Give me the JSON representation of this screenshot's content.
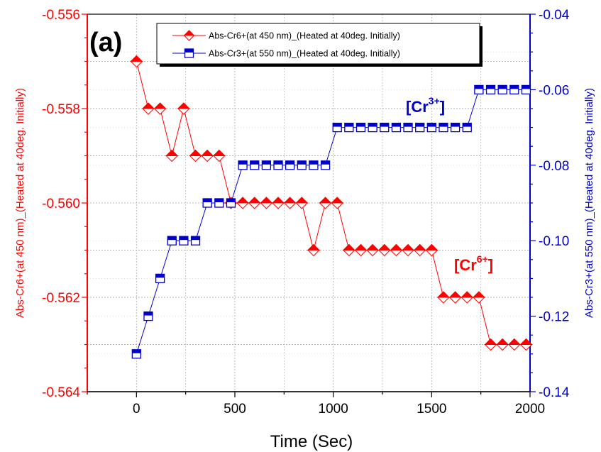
{
  "chart_data": {
    "type": "line",
    "panel_label": "(a)",
    "xlabel": "Time (Sec)",
    "ylabel_left": "Abs-Cr6+(at 450 nm)_(Heated at 40deg. Initially)",
    "ylabel_right": "Abs-Cr3+(at 550 nm)_(Heated at 40deg. Initially)",
    "xlim": [
      -250,
      2000
    ],
    "ylim_left": [
      -0.564,
      -0.556
    ],
    "ylim_right": [
      -0.14,
      -0.04
    ],
    "x_ticks": [
      "0",
      "500",
      "1000",
      "1500",
      "2000"
    ],
    "y_ticks_left": [
      "-0.564",
      "-0.562",
      "-0.560",
      "-0.558",
      "-0.556"
    ],
    "y_ticks_right": [
      "-0.14",
      "-0.12",
      "-0.10",
      "-0.08",
      "-0.06",
      "-0.04"
    ],
    "colors": {
      "cr6": "#ff0000",
      "cr3": "#0000cc",
      "axis": "#000000"
    },
    "series": [
      {
        "name": "Abs-Cr6+(at 450 nm)_(Heated at 40deg. Initially)",
        "axis": "left",
        "marker": "diamond",
        "x": [
          0,
          60,
          120,
          180,
          240,
          300,
          360,
          420,
          480,
          540,
          600,
          660,
          720,
          780,
          840,
          900,
          960,
          1020,
          1080,
          1140,
          1200,
          1260,
          1320,
          1380,
          1440,
          1500,
          1560,
          1620,
          1680,
          1740,
          1800,
          1860,
          1920,
          1980
        ],
        "values": [
          -0.557,
          -0.558,
          -0.558,
          -0.559,
          -0.558,
          -0.559,
          -0.559,
          -0.559,
          -0.56,
          -0.56,
          -0.56,
          -0.56,
          -0.56,
          -0.56,
          -0.56,
          -0.561,
          -0.56,
          -0.56,
          -0.561,
          -0.561,
          -0.561,
          -0.561,
          -0.561,
          -0.561,
          -0.561,
          -0.561,
          -0.562,
          -0.562,
          -0.562,
          -0.562,
          -0.563,
          -0.563,
          -0.563,
          -0.563
        ]
      },
      {
        "name": "Abs-Cr3+(at 550 nm)_(Heated at 40deg. Initially)",
        "axis": "right",
        "marker": "square",
        "x": [
          0,
          60,
          120,
          180,
          240,
          300,
          360,
          420,
          480,
          540,
          600,
          660,
          720,
          780,
          840,
          900,
          960,
          1020,
          1080,
          1140,
          1200,
          1260,
          1320,
          1380,
          1440,
          1500,
          1560,
          1620,
          1680,
          1740,
          1800,
          1860,
          1920,
          1980
        ],
        "values": [
          -0.13,
          -0.12,
          -0.11,
          -0.1,
          -0.1,
          -0.1,
          -0.09,
          -0.09,
          -0.09,
          -0.08,
          -0.08,
          -0.08,
          -0.08,
          -0.08,
          -0.08,
          -0.08,
          -0.08,
          -0.07,
          -0.07,
          -0.07,
          -0.07,
          -0.07,
          -0.07,
          -0.07,
          -0.07,
          -0.07,
          -0.07,
          -0.07,
          -0.07,
          -0.06,
          -0.06,
          -0.06,
          -0.06,
          -0.06
        ]
      }
    ],
    "annotations": [
      {
        "id": "cr3",
        "base": "[Cr",
        "sup": "3+",
        "tail": "]"
      },
      {
        "id": "cr6",
        "base": "[Cr",
        "sup": "6+",
        "tail": "]"
      }
    ],
    "legend_position": "top",
    "grid": true
  }
}
